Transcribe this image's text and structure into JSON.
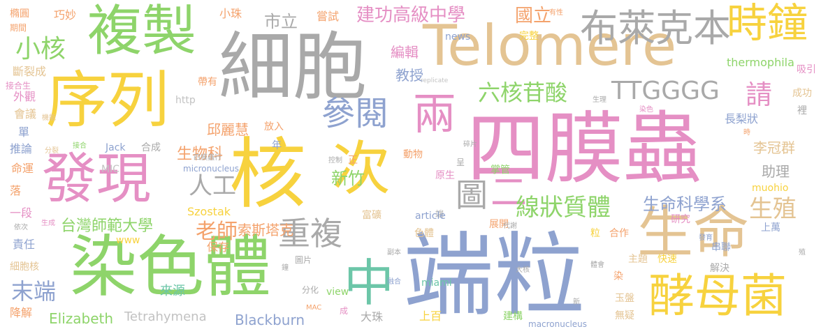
{
  "palette": {
    "pink": "#e58fc4",
    "gray": "#a9a9a9",
    "yellow": "#f7d23e",
    "green": "#8ed46a",
    "blue": "#8ea2cf",
    "tan": "#e4c493",
    "orange": "#f4a26c",
    "teal": "#6cc6a8",
    "lightgray": "#c2c2c2"
  },
  "words": [
    {
      "id": "w-duanli",
      "text": "端粒",
      "color": "blue"
    },
    {
      "id": "w-simo",
      "text": "四膜蟲",
      "color": "pink"
    },
    {
      "id": "w-xibao",
      "text": "細胞",
      "color": "gray"
    },
    {
      "id": "w-he",
      "text": "核",
      "color": "yellow"
    },
    {
      "id": "w-ranseti",
      "text": "染色體",
      "color": "green"
    },
    {
      "id": "w-telomere",
      "text": "Telomere",
      "color": "tan"
    },
    {
      "id": "w-xulie",
      "text": "序列",
      "color": "yellow"
    },
    {
      "id": "w-fuzhi",
      "text": "複製",
      "color": "green"
    },
    {
      "id": "w-faxian",
      "text": "發現",
      "color": "pink"
    },
    {
      "id": "w-shengming",
      "text": "生命",
      "color": "tan"
    },
    {
      "id": "w-ci",
      "text": "次",
      "color": "yellow"
    },
    {
      "id": "w-zhong",
      "text": "中",
      "color": "teal"
    },
    {
      "id": "w-jiaomujun",
      "text": "酵母菌",
      "color": "yellow"
    },
    {
      "id": "w-liang",
      "text": "兩",
      "color": "pink"
    },
    {
      "id": "w-bulaikeben",
      "text": "布萊克本",
      "color": "gray"
    },
    {
      "id": "w-shizhong",
      "text": "時鐘",
      "color": "yellow"
    },
    {
      "id": "w-canyue",
      "text": "參閱",
      "color": "blue"
    },
    {
      "id": "w-tu",
      "text": "圖",
      "color": "gray"
    },
    {
      "id": "w-er",
      "text": "二",
      "color": "pink"
    },
    {
      "id": "w-chongfu",
      "text": "重複",
      "color": "gray"
    },
    {
      "id": "w-xianzhuang",
      "text": "線狀質體",
      "color": "green"
    },
    {
      "id": "w-ttgggg",
      "text": "TTGGGG",
      "color": "gray"
    },
    {
      "id": "w-qing",
      "text": "請",
      "color": "pink"
    },
    {
      "id": "w-liuhe",
      "text": "六核苷酸",
      "color": "green"
    },
    {
      "id": "w-xiaohe",
      "text": "小核",
      "color": "green"
    },
    {
      "id": "w-shili",
      "text": "市立",
      "color": "gray"
    },
    {
      "id": "w-jiangong",
      "text": "建功高級中學",
      "color": "pink"
    },
    {
      "id": "w-guoli",
      "text": "國立",
      "color": "orange"
    },
    {
      "id": "w-rengong",
      "text": "人工",
      "color": "gray"
    },
    {
      "id": "w-shengzhi",
      "text": "生殖",
      "color": "tan"
    },
    {
      "id": "w-mo-duan",
      "text": "末端",
      "color": "blue"
    },
    {
      "id": "w-laoshi",
      "text": "老師",
      "color": "orange"
    },
    {
      "id": "w-taiwan",
      "text": "台灣師範大學",
      "color": "green"
    },
    {
      "id": "w-shengke",
      "text": "生命科學系",
      "color": "blue"
    },
    {
      "id": "w-shengwuke",
      "text": "生物科",
      "color": "orange"
    },
    {
      "id": "w-xinzhu",
      "text": "新竹",
      "color": "green"
    },
    {
      "id": "w-qiuli",
      "text": "邱麗慧",
      "color": "orange"
    },
    {
      "id": "w-liguan",
      "text": "李冠群",
      "color": "tan"
    },
    {
      "id": "w-zhuli",
      "text": "助理",
      "color": "gray"
    },
    {
      "id": "w-jiaoshou",
      "text": "教授",
      "color": "blue"
    },
    {
      "id": "w-bianji",
      "text": "編輯",
      "color": "pink"
    },
    {
      "id": "w-suosi",
      "text": "索斯塔克",
      "color": "orange"
    },
    {
      "id": "w-elizabeth",
      "text": "Elizabeth",
      "color": "green"
    },
    {
      "id": "w-blackburn",
      "text": "Blackburn",
      "color": "blue"
    },
    {
      "id": "w-tetra",
      "text": "Tetrahymena",
      "color": "lightgray"
    },
    {
      "id": "w-thermo",
      "text": "thermophila",
      "color": "green"
    },
    {
      "id": "w-chaoshi",
      "text": "嘗試",
      "color": "orange"
    },
    {
      "id": "w-xiaozhu",
      "text": "小珠",
      "color": "orange"
    },
    {
      "id": "w-qiaomiao",
      "text": "巧妙",
      "color": "orange"
    },
    {
      "id": "w-tuoyuan",
      "text": "橢圓",
      "color": "orange"
    },
    {
      "id": "w-qijian",
      "text": "期間",
      "color": "orange"
    },
    {
      "id": "w-duanlie",
      "text": "斷裂成",
      "color": "tan"
    },
    {
      "id": "w-jiehe",
      "text": "接合生",
      "color": "pink"
    },
    {
      "id": "w-waiguan",
      "text": "外觀",
      "color": "pink"
    },
    {
      "id": "w-huiyi",
      "text": "會議",
      "color": "tan"
    },
    {
      "id": "w-jineng",
      "text": "機能",
      "color": "tan"
    },
    {
      "id": "w-dan",
      "text": "單",
      "color": "blue"
    },
    {
      "id": "w-tuilun",
      "text": "推論",
      "color": "blue"
    },
    {
      "id": "w-fenlie",
      "text": "分裂",
      "color": "tan"
    },
    {
      "id": "w-jiehe2",
      "text": "接合",
      "color": "green"
    },
    {
      "id": "w-mingyun",
      "text": "命運",
      "color": "orange"
    },
    {
      "id": "w-luo",
      "text": "落",
      "color": "orange"
    },
    {
      "id": "w-yiduan",
      "text": "一段",
      "color": "pink"
    },
    {
      "id": "w-yici",
      "text": "依次",
      "color": "gray"
    },
    {
      "id": "w-shengcheng",
      "text": "生成",
      "color": "pink"
    },
    {
      "id": "w-zeren",
      "text": "責任",
      "color": "blue"
    },
    {
      "id": "w-xibaohe",
      "text": "細胞核",
      "color": "tan"
    },
    {
      "id": "w-jiangjie",
      "text": "降解",
      "color": "orange"
    },
    {
      "id": "w-www",
      "text": "www",
      "color": "yellow"
    },
    {
      "id": "w-baocun",
      "text": "保存",
      "color": "orange"
    },
    {
      "id": "w-laiyuan",
      "text": "來源",
      "color": "teal"
    },
    {
      "id": "w-tupian",
      "text": "圖片",
      "color": "gray"
    },
    {
      "id": "w-fenhua",
      "text": "分化",
      "color": "gray"
    },
    {
      "id": "w-mac",
      "text": "MAC",
      "color": "orange"
    },
    {
      "id": "w-cheng",
      "text": "成",
      "color": "pink"
    },
    {
      "id": "w-dazhu",
      "text": "大珠",
      "color": "gray"
    },
    {
      "id": "w-shangbai",
      "text": "上百",
      "color": "yellow"
    },
    {
      "id": "w-jiangou",
      "text": "建構",
      "color": "green"
    },
    {
      "id": "w-macronucleus",
      "text": "macronucleus",
      "color": "blue"
    },
    {
      "id": "w-wuyi",
      "text": "無疑",
      "color": "tan"
    },
    {
      "id": "w-yupan",
      "text": "玉盤",
      "color": "tan"
    },
    {
      "id": "w-ran",
      "text": "染",
      "color": "orange"
    },
    {
      "id": "w-zhuti",
      "text": "主題",
      "color": "tan"
    },
    {
      "id": "w-kuaisu",
      "text": "快速",
      "color": "yellow"
    },
    {
      "id": "w-jiejue",
      "text": "解決",
      "color": "gray"
    },
    {
      "id": "w-chuanlian",
      "text": "串聯",
      "color": "blue"
    },
    {
      "id": "w-shangwan",
      "text": "上萬",
      "color": "blue"
    },
    {
      "id": "w-yanjiu",
      "text": "研究",
      "color": "pink"
    },
    {
      "id": "w-hezuo",
      "text": "合作",
      "color": "orange"
    },
    {
      "id": "w-zhankai",
      "text": "展開",
      "color": "orange"
    },
    {
      "id": "w-sesheti",
      "text": "色體",
      "color": "tan"
    },
    {
      "id": "w-duan",
      "text": "端",
      "color": "gray"
    },
    {
      "id": "w-yuansheng",
      "text": "原生",
      "color": "pink"
    },
    {
      "id": "w-cheng2",
      "text": "呈",
      "color": "gray"
    },
    {
      "id": "w-zhang",
      "text": "掌管",
      "color": "green"
    },
    {
      "id": "w-fuben",
      "text": "副本",
      "color": "gray"
    },
    {
      "id": "w-article",
      "text": "article",
      "color": "blue"
    },
    {
      "id": "w-fukuang",
      "text": "富礦",
      "color": "tan"
    },
    {
      "id": "w-miami",
      "text": "miami",
      "color": "teal"
    },
    {
      "id": "w-view",
      "text": "view",
      "color": "green"
    },
    {
      "id": "w-szostak",
      "text": "Szostak",
      "color": "yellow"
    },
    {
      "id": "w-muohio",
      "text": "muohio",
      "color": "yellow"
    },
    {
      "id": "w-micronucleus",
      "text": "micronucleus",
      "color": "blue"
    },
    {
      "id": "w-kongzhi",
      "text": "控制",
      "color": "gray"
    },
    {
      "id": "w-zheng",
      "text": "正",
      "color": "orange"
    },
    {
      "id": "w-dongwu",
      "text": "動物",
      "color": "orange"
    },
    {
      "id": "w-suipian",
      "text": "碎片",
      "color": "gray"
    },
    {
      "id": "w-simotiaoxing",
      "text": "四膜蟲行",
      "color": "gray"
    },
    {
      "id": "w-hecheng",
      "text": "合成",
      "color": "gray"
    },
    {
      "id": "w-jack",
      "text": "Jack",
      "color": "blue"
    },
    {
      "id": "w-mic",
      "text": "MIC",
      "color": "lightgray"
    },
    {
      "id": "w-http",
      "text": "http",
      "color": "lightgray"
    },
    {
      "id": "w-daiyou",
      "text": "帶有",
      "color": "orange"
    },
    {
      "id": "w-fangru",
      "text": "放入",
      "color": "orange"
    },
    {
      "id": "w-nian",
      "text": "年",
      "color": "blue"
    },
    {
      "id": "w-news",
      "text": "news",
      "color": "blue"
    },
    {
      "id": "w-wanzheng",
      "text": "完整",
      "color": "yellow"
    },
    {
      "id": "w-youxing",
      "text": "有性",
      "color": "orange"
    },
    {
      "id": "w-replicate",
      "text": "replicate",
      "color": "lightgray"
    },
    {
      "id": "w-shengli",
      "text": "生理",
      "color": "gray"
    },
    {
      "id": "w-xiyin",
      "text": "吸引",
      "color": "pink"
    },
    {
      "id": "w-chenggong",
      "text": "成功",
      "color": "tan"
    },
    {
      "id": "w-li",
      "text": "裡",
      "color": "gray"
    },
    {
      "id": "w-ranse",
      "text": "染色",
      "color": "pink"
    },
    {
      "id": "w-changlizhuang",
      "text": "長梨狀",
      "color": "blue"
    },
    {
      "id": "w-shi",
      "text": "時",
      "color": "orange"
    },
    {
      "id": "w-daixie",
      "text": "代謝",
      "color": "gray"
    },
    {
      "id": "w-li2",
      "text": "粒",
      "color": "yellow"
    },
    {
      "id": "w-fayu",
      "text": "發育",
      "color": "blue"
    },
    {
      "id": "w-zhi",
      "text": "殖",
      "color": "gray"
    },
    {
      "id": "w-dahe",
      "text": "大核",
      "color": "gray"
    },
    {
      "id": "w-tihui",
      "text": "體會",
      "color": "gray"
    },
    {
      "id": "w-jing",
      "text": "鐘",
      "color": "gray"
    },
    {
      "id": "w-ronghe",
      "text": "融合",
      "color": "blue"
    },
    {
      "id": "w-xin",
      "text": "新",
      "color": "gray"
    }
  ]
}
